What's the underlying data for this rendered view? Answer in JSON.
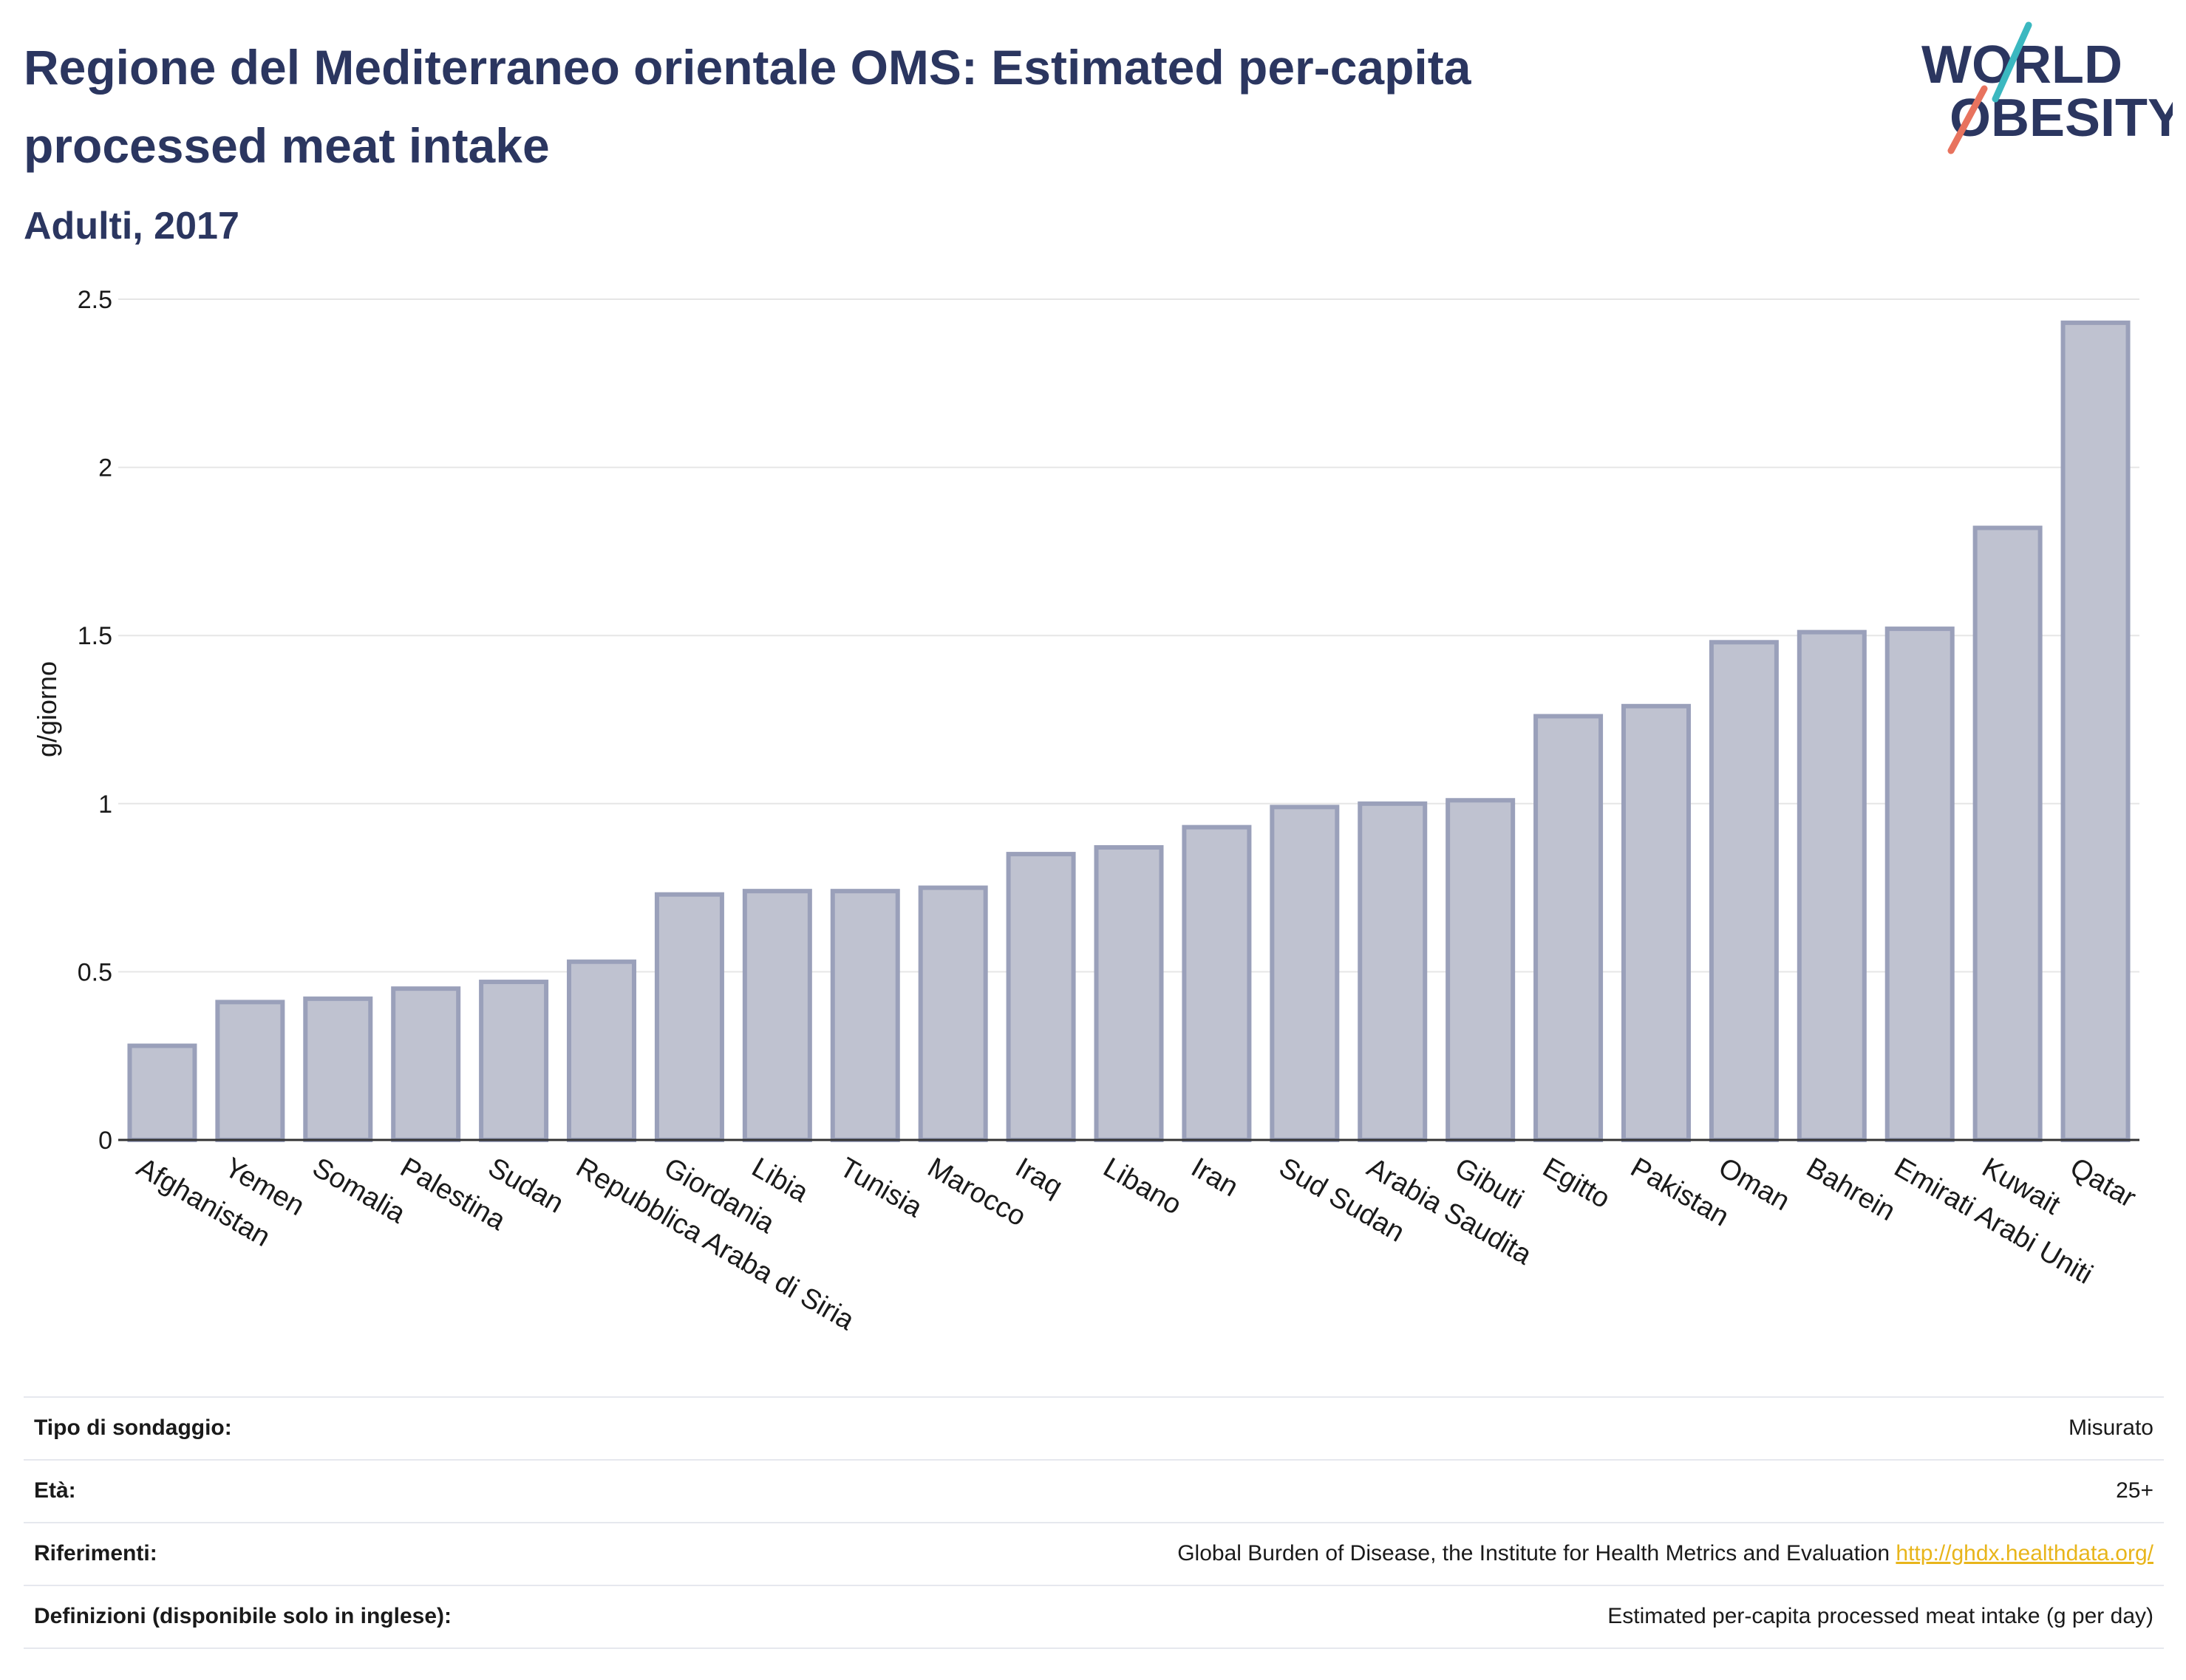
{
  "header": {
    "title": "Regione del Mediterraneo orientale OMS: Estimated per-capita processed meat intake",
    "subtitle": "Adulti, 2017"
  },
  "logo": {
    "line1": "WORLD",
    "line2": "OBESITY"
  },
  "colors": {
    "bar_fill": "#bfc2d0",
    "bar_stroke": "#9aa0ba",
    "title": "#2b3660",
    "grid": "#e6e6e6",
    "axis": "#333333",
    "logo_accent_teal": "#3bb8c0",
    "logo_accent_coral": "#e8735e",
    "link": "#e8b51b"
  },
  "chart_data": {
    "type": "bar",
    "title": "Regione del Mediterraneo orientale OMS: Estimated per-capita processed meat intake",
    "subtitle": "Adulti, 2017",
    "xlabel": "",
    "ylabel": "g/giorno",
    "ylim": [
      0,
      2.5
    ],
    "yticks": [
      0,
      0.5,
      1,
      1.5,
      2,
      2.5
    ],
    "ytick_labels": [
      "0",
      "0.5",
      "1",
      "1.5",
      "2",
      "2.5"
    ],
    "grid": true,
    "categories": [
      "Afghanistan",
      "Yemen",
      "Somalia",
      "Palestina",
      "Sudan",
      "Repubblica Araba di Siria",
      "Giordania",
      "Libia",
      "Tunisia",
      "Marocco",
      "Iraq",
      "Libano",
      "Iran",
      "Sud Sudan",
      "Arabia Saudita",
      "Gibuti",
      "Egitto",
      "Pakistan",
      "Oman",
      "Bahrein",
      "Emirati Arabi Uniti",
      "Kuwait",
      "Qatar"
    ],
    "values": [
      0.28,
      0.41,
      0.42,
      0.45,
      0.47,
      0.53,
      0.73,
      0.74,
      0.74,
      0.75,
      0.85,
      0.87,
      0.93,
      0.99,
      1.0,
      1.01,
      1.26,
      1.29,
      1.48,
      1.51,
      1.52,
      1.82,
      2.43
    ]
  },
  "metadata": [
    {
      "label": "Tipo di sondaggio:",
      "value": "Misurato"
    },
    {
      "label": "Età:",
      "value": "25+"
    },
    {
      "label": "Riferimenti:",
      "value": "Global Burden of Disease, the Institute for Health Metrics and Evaluation",
      "link": "http://ghdx.healthdata.org/"
    },
    {
      "label": "Definizioni (disponibile solo in inglese):",
      "value": "Estimated per-capita processed meat intake (g per day)"
    }
  ]
}
